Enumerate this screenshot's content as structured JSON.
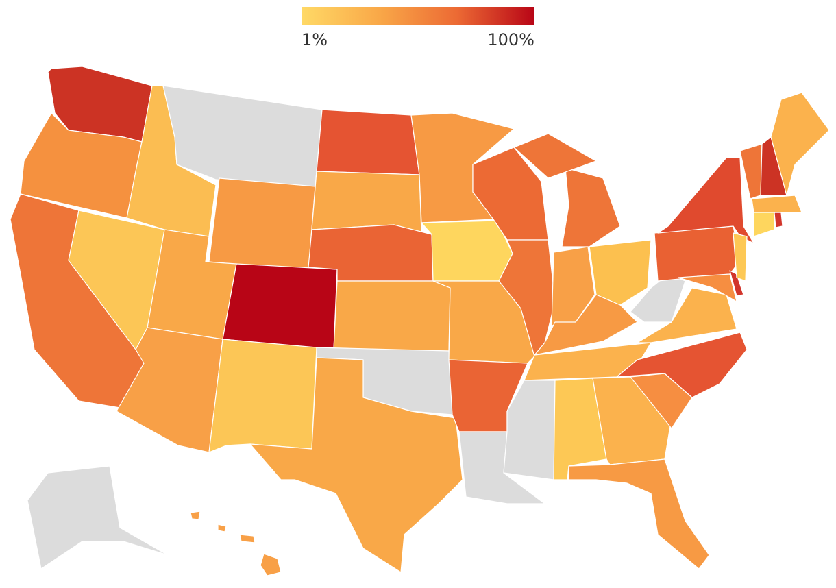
{
  "legend": {
    "min_label": "1%",
    "max_label": "100%",
    "colors": [
      "#ffd966",
      "#f9a848",
      "#ec6a34",
      "#b80516"
    ]
  },
  "map": {
    "fills": [
      "#cc3324",
      "#f5913f",
      "#ee7538",
      "#fcc656",
      "#fbbd52",
      "#dcdcdc",
      "#f79a44",
      "#f9a848",
      "#f8a047",
      "#b80516",
      "#fcc656",
      "#e55432",
      "#f9a848",
      "#ea6434",
      "#f9a848",
      "#dcdcdc",
      "#f9a848",
      "#f79a44",
      "#fed65e",
      "#f9a848",
      "#ea6434",
      "#dcdcdc",
      "#ec6a34",
      "#ee7538",
      "#ee7538",
      "#ee7538",
      "#f8a047",
      "#fcc04f",
      "#f79a44",
      "#fbb24d",
      "#dcdcdc",
      "#fdc855",
      "#fbb24d",
      "#f79a44",
      "#f68e41",
      "#e55432",
      "#fbb24d",
      "#dcdcdc",
      "#e96133",
      "#e04a2e",
      "#f68e41",
      "#d2352b",
      "#fdc855",
      "#fed65e",
      "#d2352b",
      "#fbb24d",
      "#ee7538",
      "#cc3324",
      "#fbb24d",
      "#dcdcdc",
      "#f8a047"
    ]
  }
}
